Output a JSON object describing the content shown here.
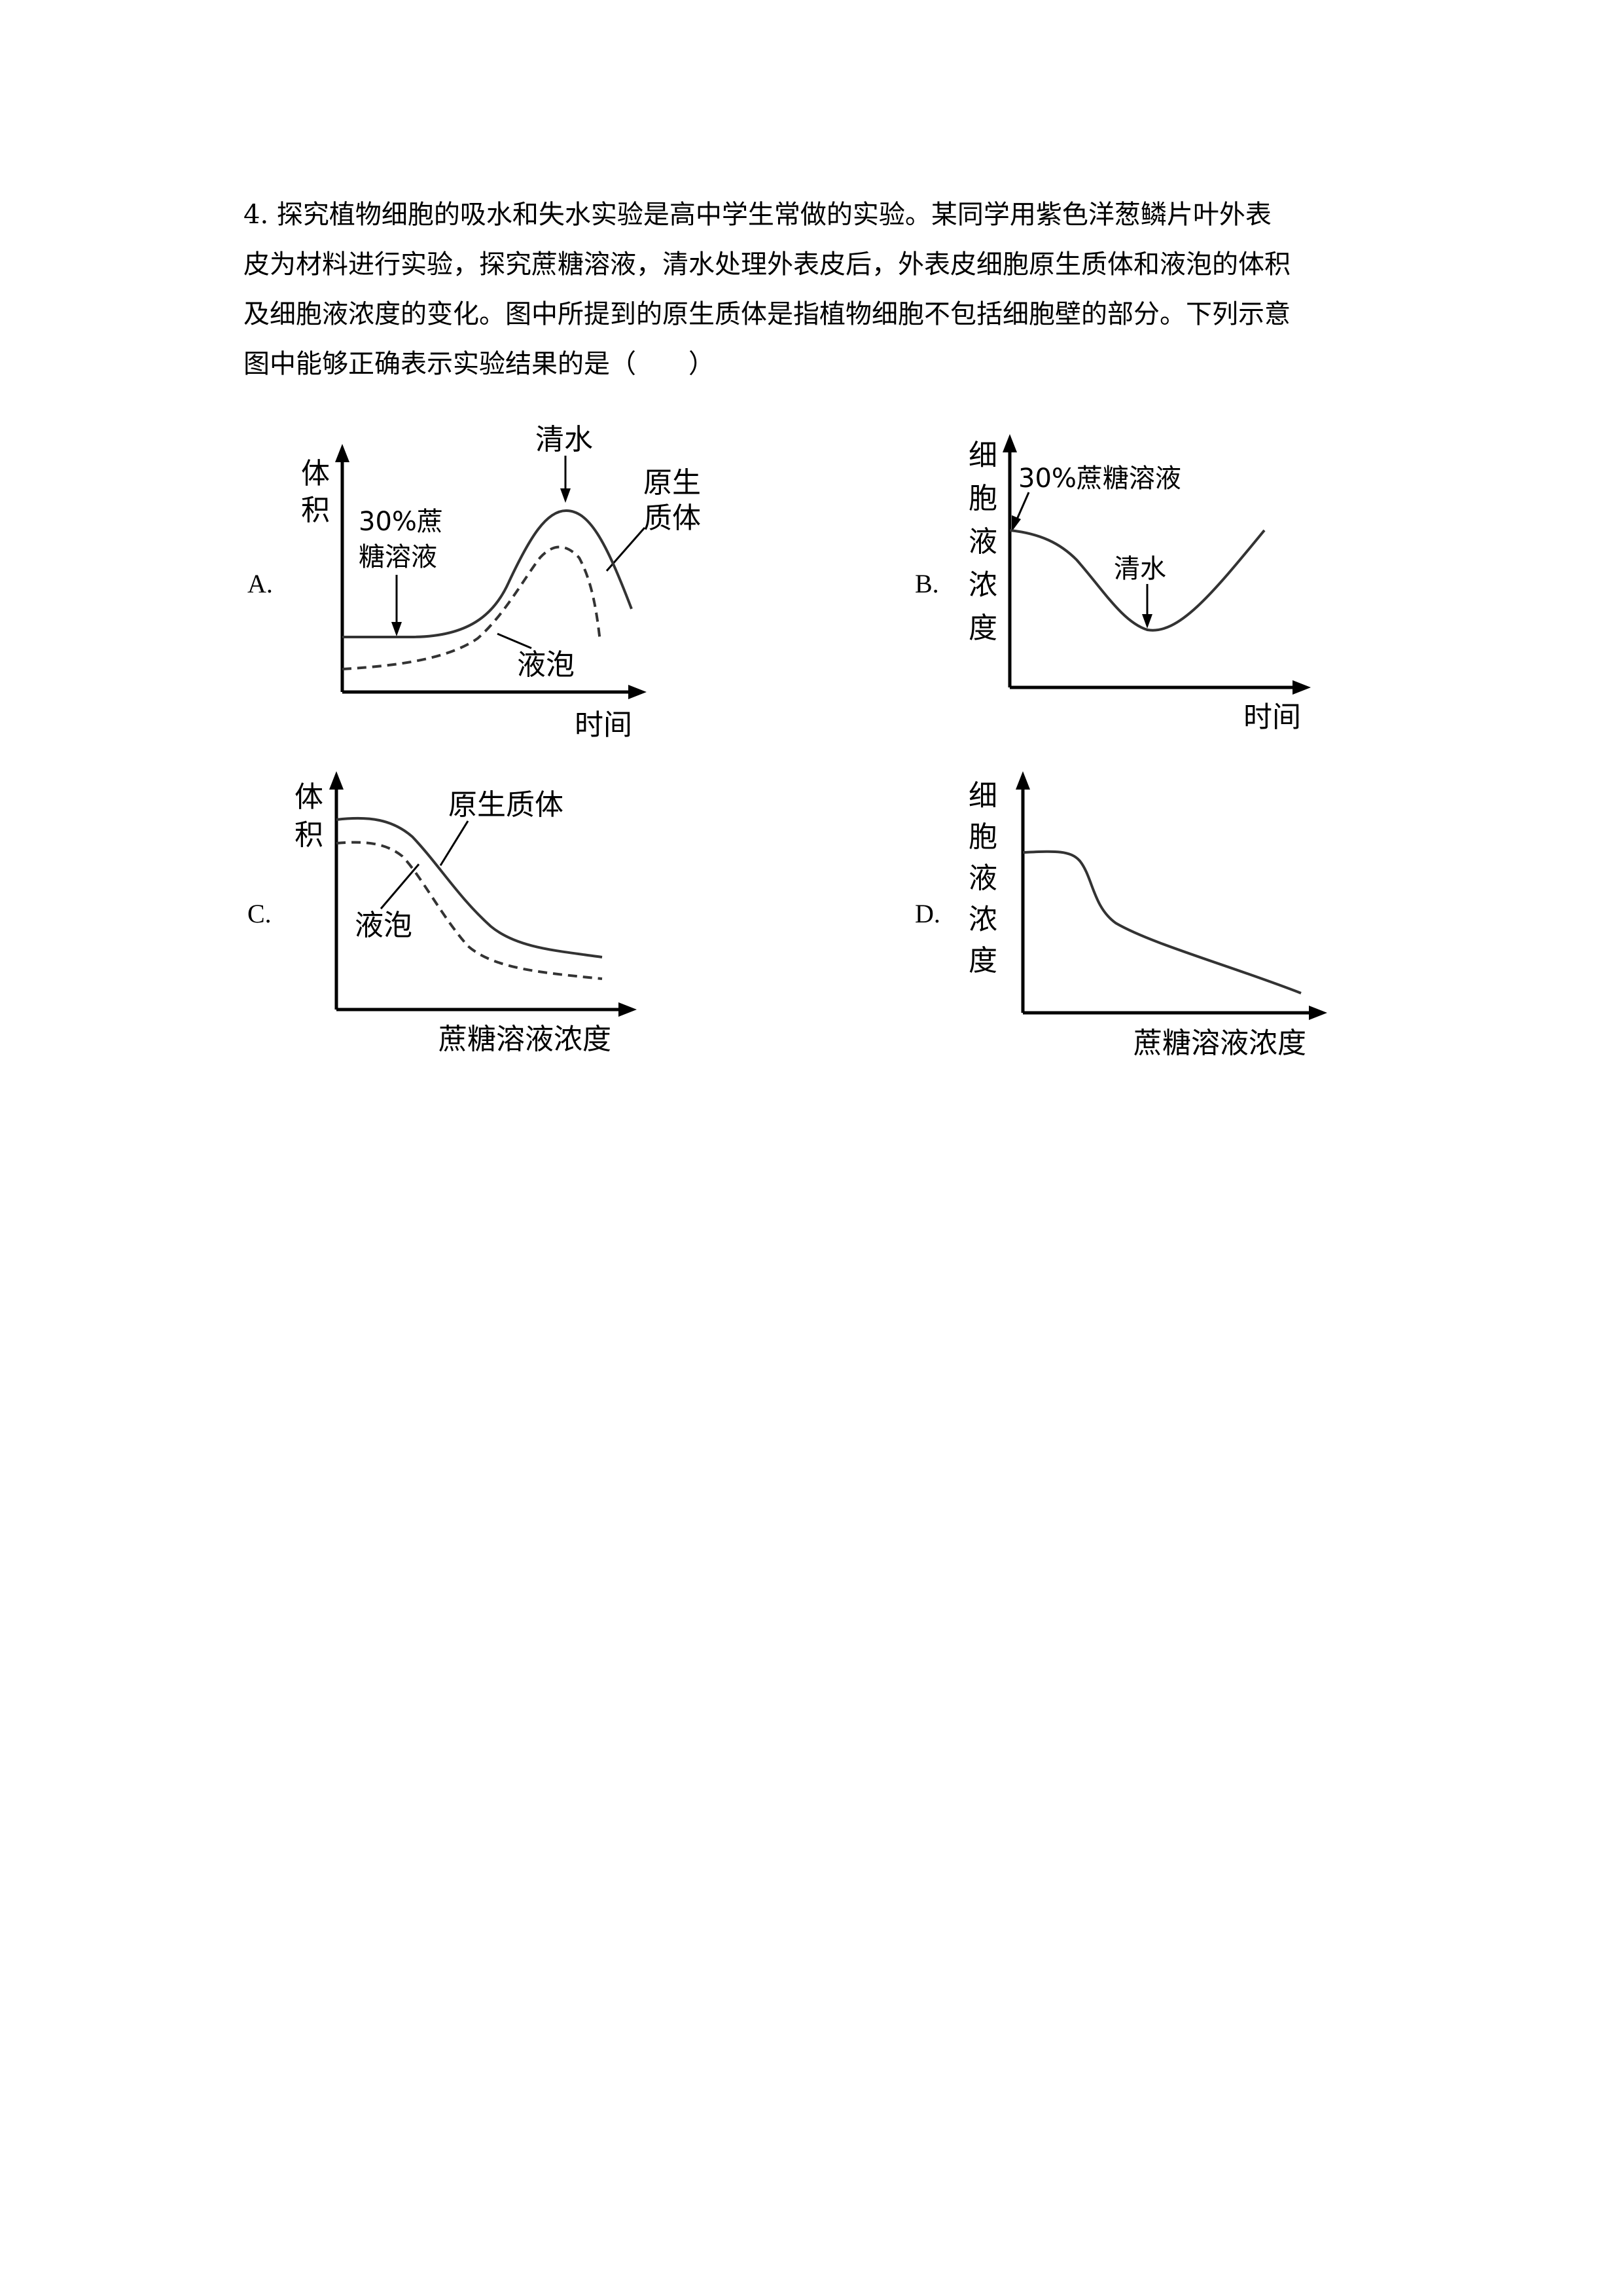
{
  "question": {
    "lines": [
      "4. 探究植物细胞的吸水和失水实验是高中学生常做的实验。某同学用紫色洋葱鳞片叶外表",
      "皮为材料进行实验，探究蔗糖溶液，清水处理外表皮后，外表皮细胞原生质体和液泡的体积",
      "及细胞液浓度的变化。图中所提到的原生质体是指植物细胞不包括细胞壁的部分。下列示意",
      "图中能够正确表示实验结果的是（　　）"
    ]
  },
  "options": {
    "A": {
      "label": "A.",
      "ylabel": [
        "体",
        "积"
      ],
      "xlabel": "时间",
      "annotation_sucrose": [
        "30%蔗",
        "糖溶液"
      ],
      "annotation_water": "清水",
      "series_protoplast": [
        "原生",
        "质体"
      ],
      "series_vacuole": "液泡"
    },
    "B": {
      "label": "B.",
      "ylabel": [
        "细",
        "胞",
        "液",
        "浓",
        "度"
      ],
      "xlabel": "时间",
      "annotation_sucrose": "30%蔗糖溶液",
      "annotation_water": "清水"
    },
    "C": {
      "label": "C.",
      "ylabel": [
        "体",
        "积"
      ],
      "xlabel": "蔗糖溶液浓度",
      "series_protoplast": "原生质体",
      "series_vacuole": "液泡"
    },
    "D": {
      "label": "D.",
      "ylabel": [
        "细",
        "胞",
        "液",
        "浓",
        "度"
      ],
      "xlabel": "蔗糖溶液浓度"
    }
  }
}
